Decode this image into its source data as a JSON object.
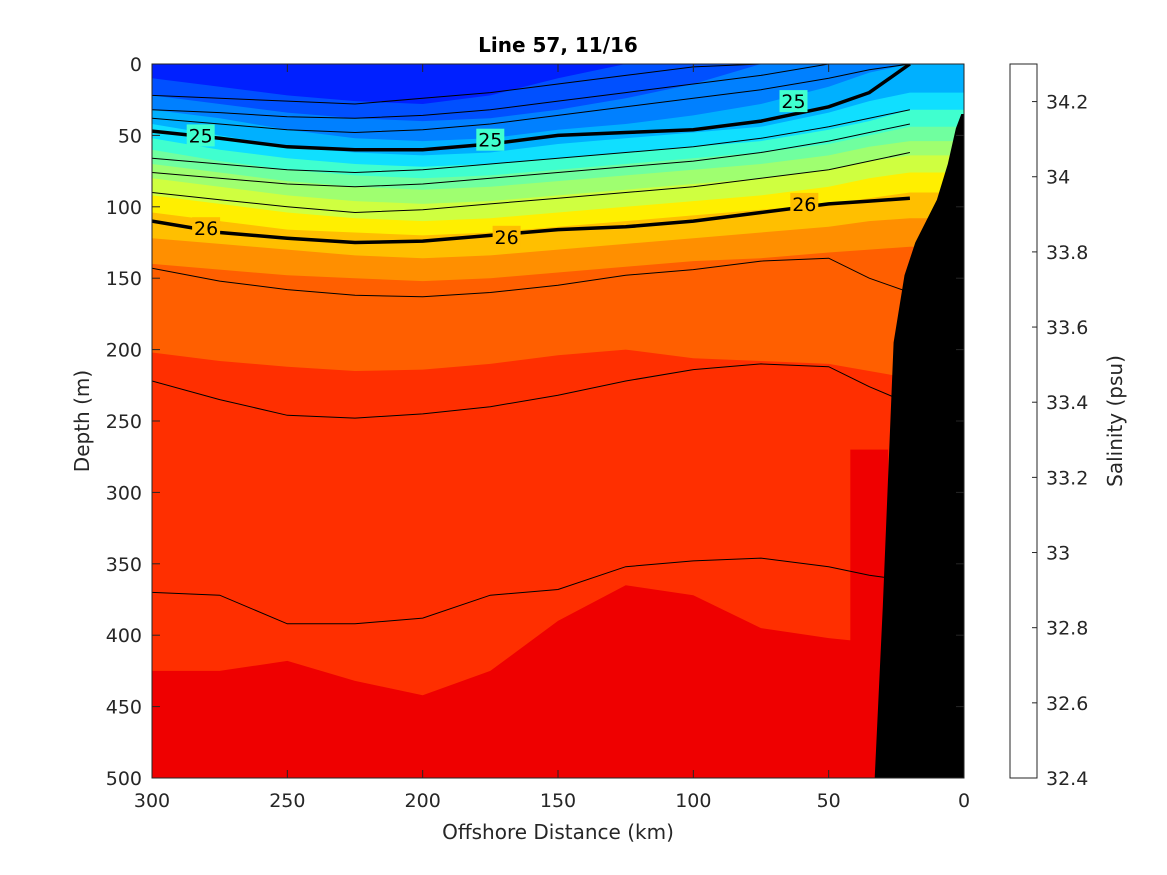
{
  "chart_data": {
    "type": "heatmap",
    "subtype": "filled-contour-section",
    "title": "Line 57, 11/16",
    "xlabel": "Offshore Distance (km)",
    "ylabel": "Depth (m)",
    "colorbar_label": "Salinity (psu)",
    "xlim": [
      300,
      0
    ],
    "x_reversed": true,
    "ylim": [
      0,
      500
    ],
    "y_reversed": true,
    "x_ticks": [
      300,
      250,
      200,
      150,
      100,
      50,
      0
    ],
    "y_ticks": [
      0,
      50,
      100,
      150,
      200,
      250,
      300,
      350,
      400,
      450,
      500
    ],
    "colorbar": {
      "range": [
        32.4,
        34.3
      ],
      "levels": [
        32.4,
        32.5,
        32.6,
        32.7,
        32.8,
        32.9,
        33.0,
        33.1,
        33.2,
        33.3,
        33.4,
        33.5,
        33.6,
        33.7,
        33.8,
        33.9,
        34.0,
        34.1,
        34.2,
        34.3
      ],
      "tick_values": [
        32.4,
        32.6,
        32.8,
        33,
        33.2,
        33.4,
        33.6,
        33.8,
        34,
        34.2
      ],
      "tick_labels": [
        "32.4",
        "32.6",
        "32.8",
        "33",
        "33.2",
        "33.4",
        "33.6",
        "33.8",
        "34",
        "34.2"
      ],
      "colors": [
        "#00008f",
        "#0000bf",
        "#0000ef",
        "#0020ff",
        "#0050ff",
        "#0080ff",
        "#00b0ff",
        "#10dfff",
        "#40ffcf",
        "#70ff9f",
        "#9fff70",
        "#cfff40",
        "#ffef00",
        "#ffbf00",
        "#ff8f00",
        "#ff5f00",
        "#ff2f00",
        "#ef0000",
        "#bf0000"
      ]
    },
    "salinity_band_tops": [
      {
        "value": 32.7,
        "depth": [
          0,
          0,
          0,
          0,
          0,
          0,
          0,
          0,
          0,
          0,
          0,
          0,
          0
        ]
      },
      {
        "value": 32.8,
        "depth": [
          10,
          16,
          22,
          26,
          28,
          22,
          10,
          0,
          0,
          0,
          0,
          0,
          0
        ]
      },
      {
        "value": 32.9,
        "depth": [
          22,
          28,
          34,
          38,
          40,
          38,
          32,
          24,
          14,
          0,
          0,
          0,
          0
        ]
      },
      {
        "value": 33.0,
        "depth": [
          32,
          38,
          46,
          52,
          54,
          52,
          46,
          42,
          36,
          28,
          16,
          6,
          0
        ]
      },
      {
        "value": 33.1,
        "depth": [
          42,
          50,
          58,
          62,
          64,
          62,
          56,
          52,
          48,
          44,
          34,
          26,
          20
        ]
      },
      {
        "value": 33.2,
        "depth": [
          52,
          60,
          66,
          70,
          72,
          70,
          66,
          62,
          58,
          54,
          46,
          40,
          32
        ]
      },
      {
        "value": 33.3,
        "depth": [
          60,
          68,
          74,
          78,
          80,
          78,
          74,
          70,
          66,
          62,
          56,
          50,
          44
        ]
      },
      {
        "value": 33.4,
        "depth": [
          70,
          76,
          82,
          86,
          88,
          86,
          82,
          78,
          74,
          70,
          64,
          58,
          54
        ]
      },
      {
        "value": 33.5,
        "depth": [
          80,
          86,
          92,
          96,
          98,
          96,
          92,
          88,
          84,
          80,
          74,
          68,
          64
        ]
      },
      {
        "value": 33.6,
        "depth": [
          92,
          98,
          104,
          108,
          110,
          108,
          104,
          100,
          96,
          92,
          86,
          80,
          76
        ]
      },
      {
        "value": 33.7,
        "depth": [
          104,
          110,
          116,
          118,
          120,
          118,
          114,
          110,
          106,
          102,
          98,
          94,
          90
        ]
      },
      {
        "value": 33.8,
        "depth": [
          122,
          126,
          130,
          134,
          136,
          134,
          130,
          126,
          122,
          118,
          114,
          110,
          108
        ]
      },
      {
        "value": 33.9,
        "depth": [
          140,
          144,
          148,
          150,
          152,
          150,
          146,
          142,
          138,
          136,
          132,
          130,
          128
        ]
      },
      {
        "value": 34.0,
        "depth": [
          202,
          208,
          212,
          215,
          214,
          210,
          204,
          200,
          206,
          208,
          210,
          215,
          220
        ]
      },
      {
        "value": 34.1,
        "depth": [
          425,
          425,
          418,
          432,
          442,
          425,
          390,
          365,
          372,
          395,
          402,
          405,
          380
        ]
      }
    ],
    "deep_patch_near_shelf": {
      "value": 34.1,
      "x_range": [
        42,
        28
      ],
      "depth_range": [
        270,
        500
      ]
    },
    "isopycnal_labels": [
      {
        "label": "25",
        "x": 282,
        "depth": 50
      },
      {
        "label": "25",
        "x": 175,
        "depth": 53
      },
      {
        "label": "25",
        "x": 63,
        "depth": 26
      },
      {
        "label": "26",
        "x": 280,
        "depth": 115
      },
      {
        "label": "26",
        "x": 169,
        "depth": 121
      },
      {
        "label": "26",
        "x": 59,
        "depth": 98
      }
    ],
    "contour_x": [
      300,
      275,
      250,
      225,
      200,
      175,
      150,
      125,
      100,
      75,
      50,
      35,
      20
    ],
    "isopycnals": [
      {
        "bold": true,
        "depth": [
          47,
          52,
          58,
          60,
          60,
          56,
          50,
          48,
          46,
          40,
          30,
          20,
          0
        ]
      },
      {
        "bold": false,
        "depth": [
          22,
          24,
          26,
          28,
          24,
          20,
          14,
          8,
          2,
          0,
          0,
          0,
          0
        ]
      },
      {
        "bold": false,
        "depth": [
          32,
          34,
          37,
          38,
          36,
          32,
          26,
          20,
          14,
          8,
          0,
          0,
          0
        ]
      },
      {
        "bold": false,
        "depth": [
          38,
          42,
          46,
          48,
          46,
          42,
          36,
          30,
          24,
          18,
          10,
          4,
          0
        ]
      },
      {
        "bold": false,
        "depth": [
          66,
          70,
          74,
          76,
          74,
          70,
          66,
          62,
          58,
          52,
          44,
          38,
          32
        ]
      },
      {
        "bold": false,
        "depth": [
          76,
          80,
          84,
          86,
          84,
          80,
          76,
          72,
          68,
          62,
          54,
          48,
          42
        ]
      },
      {
        "bold": false,
        "depth": [
          90,
          95,
          100,
          104,
          102,
          98,
          94,
          90,
          86,
          80,
          74,
          68,
          62
        ]
      },
      {
        "bold": true,
        "depth": [
          110,
          118,
          122,
          125,
          124,
          120,
          116,
          114,
          110,
          104,
          98,
          96,
          94
        ]
      },
      {
        "bold": false,
        "depth": [
          143,
          152,
          158,
          162,
          163,
          160,
          155,
          148,
          144,
          138,
          136,
          150,
          160
        ]
      },
      {
        "bold": false,
        "depth": [
          222,
          235,
          246,
          248,
          245,
          240,
          232,
          222,
          214,
          210,
          212,
          226,
          238
        ]
      },
      {
        "bold": false,
        "depth": [
          370,
          372,
          392,
          392,
          388,
          372,
          368,
          352,
          348,
          346,
          352,
          358,
          362
        ]
      }
    ],
    "bathymetry": {
      "x": [
        33,
        30,
        26,
        22,
        18,
        14,
        10,
        6,
        3,
        1
      ],
      "depth": [
        500,
        380,
        195,
        148,
        125,
        110,
        95,
        70,
        45,
        35
      ],
      "color": "#000000"
    }
  }
}
